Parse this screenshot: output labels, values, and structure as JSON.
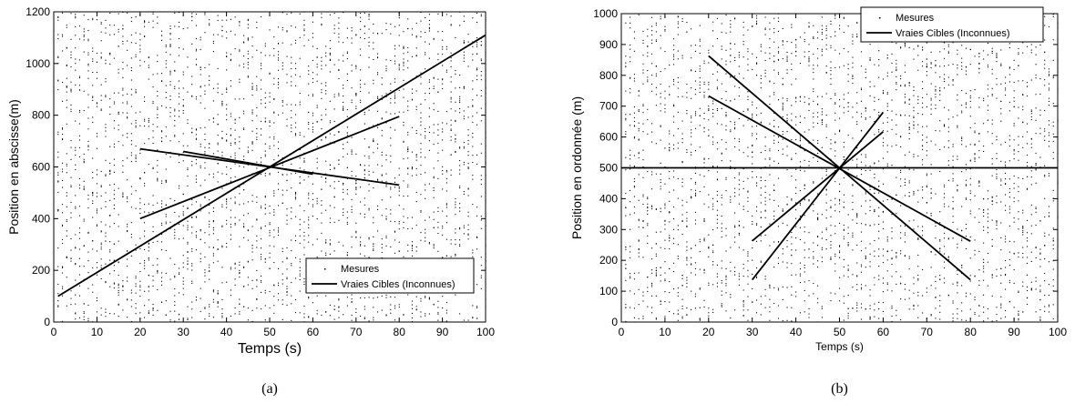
{
  "chart_data": [
    {
      "type": "line",
      "panel": "a",
      "caption": "(a)",
      "xlabel": "Temps (s)",
      "ylabel": "Position en abscisse(m)",
      "xlim": [
        0,
        100
      ],
      "ylim": [
        0,
        1200
      ],
      "xticks": [
        0,
        10,
        20,
        30,
        40,
        50,
        60,
        70,
        80,
        90,
        100
      ],
      "yticks": [
        0,
        200,
        400,
        600,
        800,
        1000,
        1200
      ],
      "grid": false,
      "legend": {
        "placement": "bottom-right",
        "entries": [
          "Mesures",
          "Vraies Cibles (Inconnues)"
        ]
      },
      "measurements": {
        "label": "Mesures",
        "style": "random clutter points filling the plot",
        "x_range": [
          1,
          100
        ],
        "y_range": [
          0,
          1200
        ]
      },
      "targets": {
        "label": "Vraies Cibles (Inconnues)",
        "tracks": [
          {
            "x": [
              1,
              100
            ],
            "y": [
              100,
              1110
            ]
          },
          {
            "x": [
              20,
              80
            ],
            "y": [
              400,
              795
            ]
          },
          {
            "x": [
              20,
              80
            ],
            "y": [
              670,
              530
            ]
          },
          {
            "x": [
              30,
              60
            ],
            "y": [
              660,
              572
            ]
          }
        ]
      }
    },
    {
      "type": "line",
      "panel": "b",
      "caption": "(b)",
      "xlabel": "Temps (s)",
      "ylabel": "Position en ordonnée (m)",
      "xlim": [
        0,
        100
      ],
      "ylim": [
        0,
        1000
      ],
      "xticks": [
        0,
        10,
        20,
        30,
        40,
        50,
        60,
        70,
        80,
        90,
        100
      ],
      "yticks": [
        0,
        100,
        200,
        300,
        400,
        500,
        600,
        700,
        800,
        900,
        1000
      ],
      "grid": false,
      "legend": {
        "placement": "top-right",
        "entries": [
          "Mesures",
          "Vraies Cibles (Inconnues)"
        ]
      },
      "measurements": {
        "label": "Mesures",
        "style": "random clutter points filling the plot",
        "x_range": [
          1,
          100
        ],
        "y_range": [
          0,
          1000
        ]
      },
      "targets": {
        "label": "Vraies Cibles (Inconnues)",
        "tracks": [
          {
            "x": [
              0,
              100
            ],
            "y": [
              500,
              500
            ]
          },
          {
            "x": [
              20,
              80
            ],
            "y": [
              863,
              137
            ]
          },
          {
            "x": [
              20,
              80
            ],
            "y": [
              733,
              262
            ]
          },
          {
            "x": [
              30,
              60
            ],
            "y": [
              263,
              617
            ]
          },
          {
            "x": [
              30,
              60
            ],
            "y": [
              137,
              680
            ]
          }
        ]
      }
    }
  ]
}
